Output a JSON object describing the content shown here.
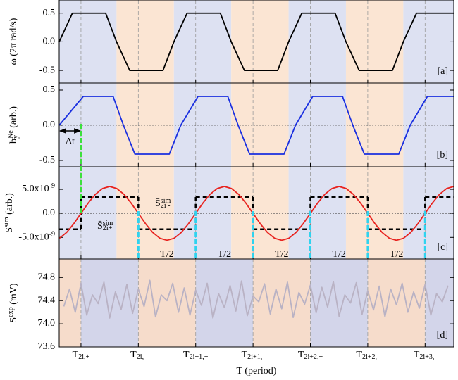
{
  "chart_data": [
    {
      "type": "line",
      "panel_label": "[a]",
      "ylabel": [
        {
          "text": "ω (2π rad/s)"
        }
      ],
      "xlim": [
        -0.19,
        3.25
      ],
      "ylim": [
        -0.72,
        0.73
      ],
      "yticks": [
        -0.5,
        {
          "value": 0,
          "label": "0.0"
        },
        0.5
      ],
      "zero_line": true,
      "bands": {
        "edges": [
          -0.19,
          0.31,
          0.81,
          1.31,
          1.81,
          2.31,
          2.81,
          3.25
        ],
        "colors": [
          "#dde1f2",
          "#fbe5d3"
        ]
      },
      "series": [
        {
          "color": "#000000",
          "x": [
            -0.19,
            -0.075,
            0.215,
            0.31,
            0.425,
            0.715,
            0.81,
            0.925,
            1.215,
            1.31,
            1.425,
            1.715,
            1.81,
            1.925,
            2.215,
            2.31,
            2.425,
            2.715,
            2.81,
            2.925,
            3.25
          ],
          "values": [
            0,
            0.5,
            0.5,
            0,
            -0.5,
            -0.5,
            0,
            0.5,
            0.5,
            0,
            -0.5,
            -0.5,
            0,
            0.5,
            0.5,
            0,
            -0.5,
            -0.5,
            0,
            0.5,
            0.5
          ]
        }
      ]
    },
    {
      "type": "line",
      "panel_label": "[b]",
      "ylabel": [
        {
          "text": "b"
        },
        {
          "text": "y",
          "pos": "sub"
        },
        {
          "text": "Ne",
          "pos": "sup"
        },
        {
          "text": " (arb.)"
        }
      ],
      "xlim": [
        -0.19,
        3.25
      ],
      "ylim": [
        -0.59,
        0.6
      ],
      "yticks": [
        -0.5,
        {
          "value": 0,
          "label": "0.0"
        },
        0.5
      ],
      "zero_line": true,
      "bands": {
        "edges": [
          -0.19,
          0.31,
          0.81,
          1.31,
          1.81,
          2.31,
          2.81,
          3.25
        ],
        "colors": [
          "#dde1f2",
          "#fbe5d3"
        ]
      },
      "series": [
        {
          "color": "#1a2fe0",
          "x": [
            -0.19,
            0.02,
            0.28,
            0.37,
            0.47,
            0.77,
            0.87,
            1.02,
            1.28,
            1.37,
            1.47,
            1.77,
            1.87,
            2.02,
            2.28,
            2.37,
            2.47,
            2.77,
            2.87,
            3.02,
            3.25
          ],
          "values": [
            0,
            0.41,
            0.41,
            0,
            -0.41,
            -0.41,
            0,
            0.41,
            0.41,
            0,
            -0.41,
            -0.41,
            0,
            0.41,
            0.41,
            0,
            -0.41,
            -0.41,
            0,
            0.41,
            0.41
          ]
        }
      ],
      "delay": {
        "from": -0.19,
        "to": 0,
        "label": "Δt"
      }
    },
    {
      "type": "line",
      "panel_label": "[c]",
      "ylabel": [
        {
          "text": "S"
        },
        {
          "text": "sim",
          "pos": "sup"
        },
        {
          "text": " (arb.)"
        }
      ],
      "xlim": [
        -0.19,
        3.25
      ],
      "ylim": [
        -9.5e-09,
        9.7e-09
      ],
      "yticks": [
        {
          "value": -5e-09,
          "label": "-5.0x10",
          "sup": "-9"
        },
        {
          "value": 0,
          "label": "0.0"
        },
        {
          "value": 5e-09,
          "label": "5.0x10",
          "sup": "-9"
        }
      ],
      "zero_line": true,
      "bands": {
        "edges": [
          -0.19,
          0.31,
          0.81,
          1.31,
          1.81,
          2.31,
          2.81,
          3.25
        ],
        "colors": [
          "#dde1f2",
          "#fbe5d3"
        ]
      },
      "series": [
        {
          "color": "#e8231f",
          "x": [
            -0.1875,
            -0.125,
            -0.0625,
            0,
            0.0625,
            0.125,
            0.1875,
            0.25,
            0.3125,
            0.375,
            0.4375,
            0.5,
            0.5625,
            0.625,
            0.6875,
            0.75,
            0.8125,
            0.875,
            0.9375,
            1,
            1.0625,
            1.125,
            1.1875,
            1.25,
            1.3125,
            1.375,
            1.4375,
            1.5,
            1.5625,
            1.625,
            1.6875,
            1.75,
            1.8125,
            1.875,
            1.9375,
            2,
            2.0625,
            2.125,
            2.1875,
            2.25,
            2.3125,
            2.375,
            2.4375,
            2.5,
            2.5625,
            2.625,
            2.6875,
            2.75,
            2.8125,
            2.875,
            2.9375,
            3,
            3.0625,
            3.125,
            3.1875,
            3.25
          ],
          "values": [
            -5.17e-09,
            -3.96e-09,
            -2.14e-09,
            0,
            2.14e-09,
            3.96e-09,
            5.17e-09,
            5.6e-09,
            5.17e-09,
            3.96e-09,
            2.14e-09,
            0,
            -2.14e-09,
            -3.96e-09,
            -5.17e-09,
            -5.6e-09,
            -5.17e-09,
            -3.96e-09,
            -2.14e-09,
            0,
            2.14e-09,
            3.96e-09,
            5.17e-09,
            5.6e-09,
            5.17e-09,
            3.96e-09,
            2.14e-09,
            0,
            -2.14e-09,
            -3.96e-09,
            -5.17e-09,
            -5.6e-09,
            -5.17e-09,
            -3.96e-09,
            -2.14e-09,
            0,
            2.14e-09,
            3.96e-09,
            5.17e-09,
            5.6e-09,
            5.17e-09,
            3.96e-09,
            2.14e-09,
            0,
            -2.14e-09,
            -3.96e-09,
            -5.17e-09,
            -5.6e-09,
            -5.17e-09,
            -3.96e-09,
            -2.14e-09,
            0,
            2.14e-09,
            3.96e-09,
            5.17e-09,
            5.6e-09
          ]
        },
        {
          "color": "#000000",
          "dashed": true,
          "edges": [
            -0.19,
            0,
            0.5,
            1,
            1.5,
            2,
            2.5,
            3,
            3.25
          ],
          "values": [
            -3.3e-09,
            3.4e-09,
            -3.3e-09,
            3.4e-09,
            -3.3e-09,
            3.4e-09,
            -3.3e-09,
            3.4e-09
          ]
        }
      ],
      "mean_labels": [
        [
          {
            "text": "S̄"
          },
          {
            "text": "sim",
            "pos": "sup"
          },
          {
            "text": "2i+",
            "pos": "sub"
          }
        ],
        [
          {
            "text": "S̄"
          },
          {
            "text": "sim",
            "pos": "sup"
          },
          {
            "text": "2i -",
            "pos": "sub"
          }
        ]
      ],
      "markers": [
        {
          "x": 0,
          "color": "#3ce03c"
        },
        {
          "x": 0.5,
          "color": "#2fd3ef"
        },
        {
          "x": 1,
          "color": "#2fd3ef"
        },
        {
          "x": 1.5,
          "color": "#2fd3ef"
        },
        {
          "x": 2,
          "color": "#2fd3ef"
        },
        {
          "x": 2.5,
          "color": "#2fd3ef"
        },
        {
          "x": 3,
          "color": "#2fd3ef"
        }
      ],
      "half_periods": [
        {
          "from": 0.5,
          "to": 1,
          "label": "T/2"
        },
        {
          "from": 1,
          "to": 1.5,
          "label": "T/2"
        },
        {
          "from": 1.5,
          "to": 2,
          "label": "T/2"
        },
        {
          "from": 2,
          "to": 2.5,
          "label": "T/2"
        },
        {
          "from": 2.5,
          "to": 3,
          "label": "T/2"
        }
      ]
    },
    {
      "type": "line",
      "panel_label": "[d]",
      "ylabel": [
        {
          "text": "S"
        },
        {
          "text": "exp",
          "pos": "sup"
        },
        {
          "text": " (mV)"
        }
      ],
      "xlabel": "T (period)",
      "xlim": [
        -0.19,
        3.25
      ],
      "ylim": [
        73.6,
        75.12
      ],
      "yticks": [
        73.6,
        {
          "value": 74,
          "label": "74.0"
        },
        74.4,
        74.8
      ],
      "zero_line": false,
      "xticks": [
        {
          "value": 0,
          "label": "T",
          "sub": "2i,+"
        },
        {
          "value": 0.5,
          "label": "T",
          "sub": "2i,-"
        },
        {
          "value": 1,
          "label": "T",
          "sub": "2i+1,+"
        },
        {
          "value": 1.5,
          "label": "T",
          "sub": "2i+1,-"
        },
        {
          "value": 2,
          "label": "T",
          "sub": "2i+2,+"
        },
        {
          "value": 2.5,
          "label": "T",
          "sub": "2i+2,-"
        },
        {
          "value": 3,
          "label": "T",
          "sub": "2i+3,-"
        }
      ],
      "bands": {
        "edges": [
          -0.19,
          0,
          0.5,
          1,
          1.5,
          2,
          2.5,
          3,
          3.25
        ],
        "colors": [
          "#f6dccb",
          "#d3d5ea"
        ]
      },
      "series": [
        {
          "color": "#b9b2c4",
          "x": [
            -0.15,
            -0.1,
            -0.05,
            0,
            0.05,
            0.1,
            0.15,
            0.2,
            0.25,
            0.3,
            0.35,
            0.4,
            0.45,
            0.5,
            0.55,
            0.6,
            0.65,
            0.7,
            0.75,
            0.8,
            0.85,
            0.9,
            0.95,
            1,
            1.05,
            1.1,
            1.15,
            1.2,
            1.25,
            1.3,
            1.35,
            1.4,
            1.45,
            1.5,
            1.55,
            1.6,
            1.65,
            1.7,
            1.75,
            1.8,
            1.85,
            1.9,
            1.95,
            2,
            2.05,
            2.1,
            2.15,
            2.2,
            2.25,
            2.3,
            2.35,
            2.4,
            2.45,
            2.5,
            2.55,
            2.6,
            2.65,
            2.7,
            2.75,
            2.8,
            2.85,
            2.9,
            2.95,
            3,
            3.05,
            3.1,
            3.15,
            3.2
          ],
          "values": [
            74.3,
            74.6,
            74.2,
            74.7,
            74.15,
            74.5,
            74.35,
            74.72,
            74.1,
            74.55,
            74.25,
            74.68,
            74.18,
            74.6,
            74.3,
            74.75,
            74.12,
            74.5,
            74.4,
            74.7,
            74.2,
            74.62,
            74.15,
            74.58,
            74.32,
            74.7,
            74.1,
            74.52,
            74.28,
            74.66,
            74.22,
            74.74,
            74.14,
            74.48,
            74.38,
            74.69,
            74.17,
            74.6,
            74.26,
            74.72,
            74.11,
            74.54,
            74.34,
            74.67,
            74.19,
            74.63,
            74.29,
            74.73,
            74.13,
            74.5,
            74.36,
            74.71,
            74.16,
            74.57,
            74.24,
            74.65,
            74.12,
            74.6,
            74.33,
            74.7,
            74.2,
            74.55,
            74.27,
            74.68,
            74.15,
            74.52,
            74.38,
            74.66
          ]
        }
      ]
    }
  ]
}
